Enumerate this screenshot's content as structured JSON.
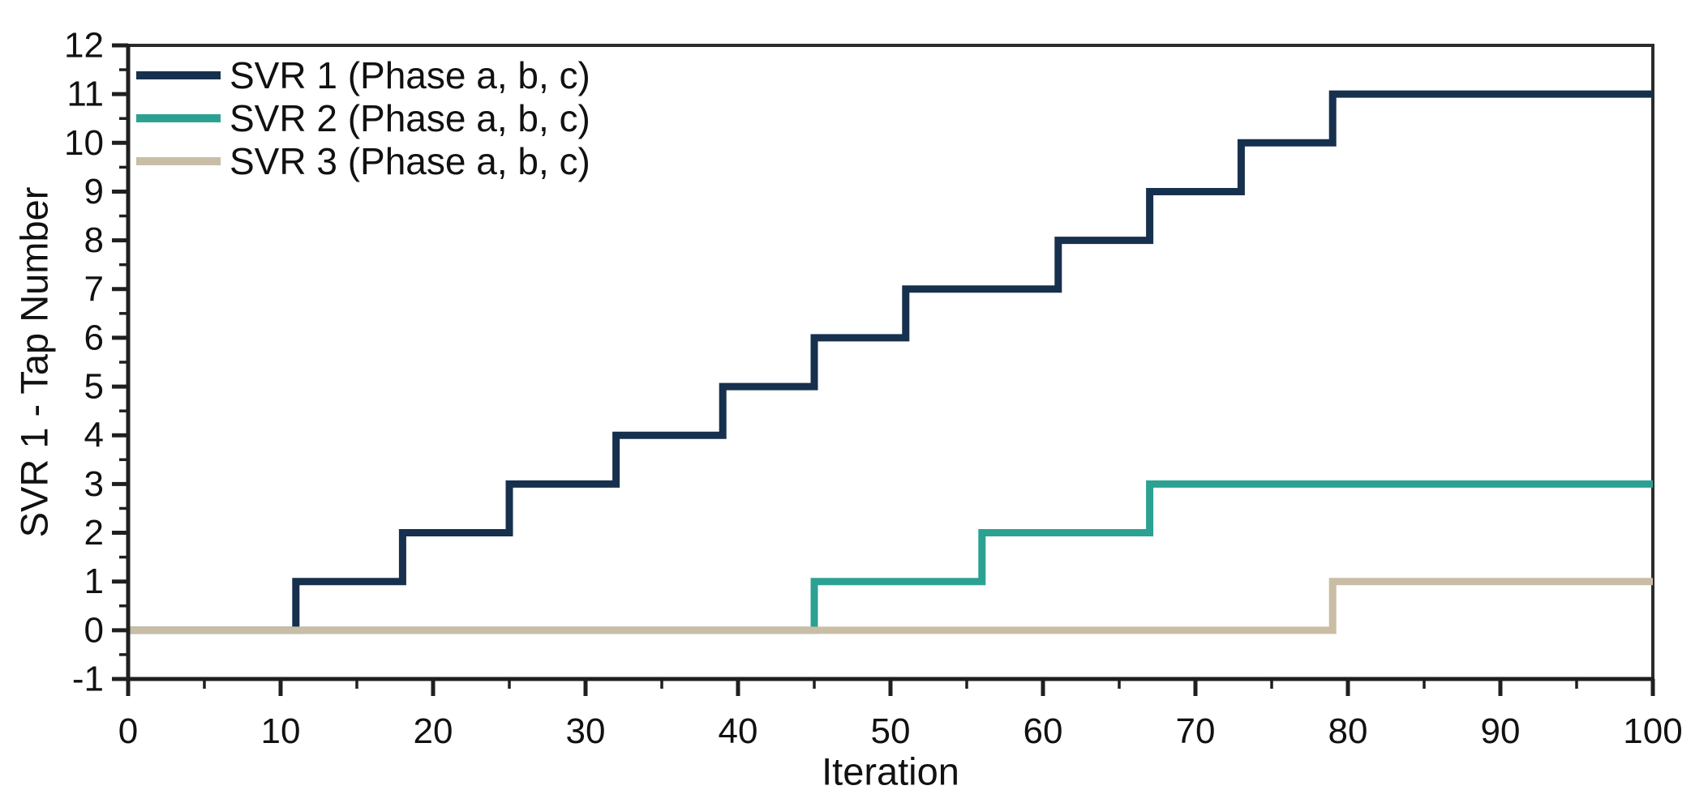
{
  "figure": {
    "background": "#ffffff",
    "axis_color": "#1f1f1f",
    "box_color": "#2b2b2b",
    "text_color": "#111111"
  },
  "chart_data": {
    "type": "line",
    "step_mode": "post",
    "title": "",
    "xlabel": "Iteration",
    "ylabel": "SVR 1 - Tap Number",
    "xlim": [
      0,
      100
    ],
    "ylim": [
      -1,
      12
    ],
    "grid": false,
    "legend_position": "top-left",
    "x_major_ticks": [
      0,
      10,
      20,
      30,
      40,
      50,
      60,
      70,
      80,
      90,
      100
    ],
    "x_minor_ticks": [
      5,
      15,
      25,
      35,
      45,
      55,
      65,
      75,
      85,
      95
    ],
    "x_tick_labels": [
      "0",
      "10",
      "20",
      "30",
      "40",
      "50",
      "60",
      "70",
      "80",
      "90",
      "100"
    ],
    "y_major_ticks": [
      -1,
      0,
      1,
      2,
      3,
      4,
      5,
      6,
      7,
      8,
      9,
      10,
      11,
      12
    ],
    "y_minor_ticks": [
      -0.5,
      0.5,
      1.5,
      2.5,
      3.5,
      4.5,
      5.5,
      6.5,
      7.5,
      8.5,
      9.5,
      10.5,
      11.5
    ],
    "y_tick_labels": [
      "-1",
      "0",
      "1",
      "2",
      "3",
      "4",
      "5",
      "6",
      "7",
      "8",
      "9",
      "10",
      "11",
      "12"
    ],
    "series": [
      {
        "name": "SVR 1 (Phase a, b, c)",
        "color": "#16304e",
        "start_x": 0,
        "start_value": 0,
        "transitions": [
          [
            11,
            1
          ],
          [
            18,
            2
          ],
          [
            25,
            3
          ],
          [
            32,
            4
          ],
          [
            39,
            5
          ],
          [
            45,
            6
          ],
          [
            51,
            7
          ],
          [
            61,
            8
          ],
          [
            67,
            9
          ],
          [
            73,
            10
          ],
          [
            79,
            11
          ]
        ],
        "x_end": 100
      },
      {
        "name": "SVR 2 (Phase a, b, c)",
        "color": "#2ba192",
        "start_x": 0,
        "start_value": 0,
        "transitions": [
          [
            45,
            1
          ],
          [
            56,
            2
          ],
          [
            67,
            3
          ]
        ],
        "x_end": 100
      },
      {
        "name": "SVR 3 (Phase a, b, c)",
        "color": "#c9bda5",
        "start_x": 0,
        "start_value": 0,
        "transitions": [
          [
            79,
            1
          ]
        ],
        "x_end": 100
      }
    ]
  }
}
